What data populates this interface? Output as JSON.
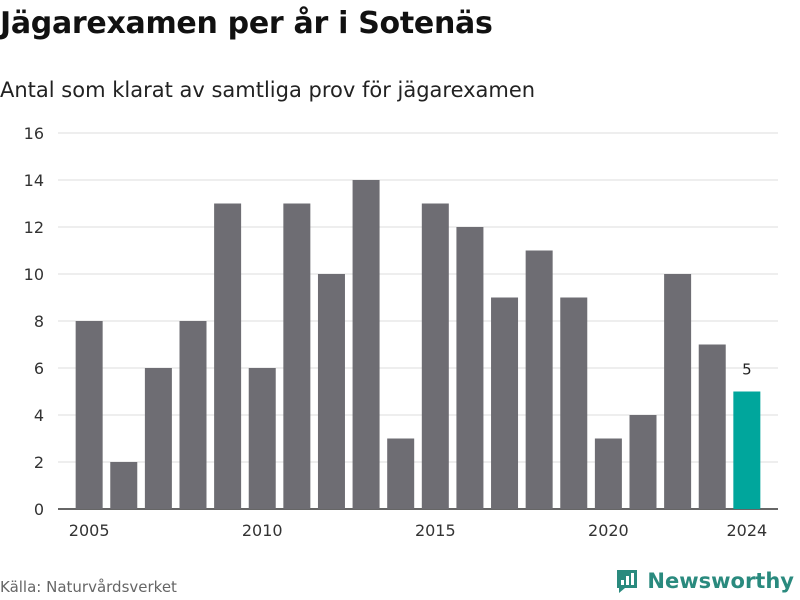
{
  "title": "Jägarexamen per år i Sotenäs",
  "subtitle": "Antal som klarat av samtliga prov för jägarexamen",
  "source": "Källa: Naturvårdsverket",
  "brand": {
    "name": "Newsworthy",
    "icon": "newsworthy-logo-icon"
  },
  "colors": {
    "bar": "#6e6d73",
    "highlight": "#00a69c",
    "grid": "#dddddd",
    "brand": "#2a8a7e"
  },
  "chart_data": {
    "type": "bar",
    "title": "Jägarexamen per år i Sotenäs",
    "subtitle": "Antal som klarat av samtliga prov för jägarexamen",
    "x": [
      2005,
      2006,
      2007,
      2008,
      2009,
      2010,
      2011,
      2012,
      2013,
      2014,
      2015,
      2016,
      2017,
      2018,
      2019,
      2020,
      2021,
      2022,
      2023,
      2024
    ],
    "values": [
      8,
      2,
      6,
      8,
      13,
      6,
      13,
      10,
      14,
      3,
      13,
      12,
      9,
      11,
      9,
      3,
      4,
      10,
      7,
      5
    ],
    "highlight_index": 19,
    "data_labels": [
      {
        "x": 2024,
        "text": "5"
      }
    ],
    "x_ticks": [
      2005,
      2010,
      2015,
      2020,
      2024
    ],
    "y_ticks": [
      0,
      2,
      4,
      6,
      8,
      10,
      12,
      14,
      16
    ],
    "ylim": [
      0,
      16
    ],
    "xlabel": "",
    "ylabel": "",
    "grid": true,
    "legend": "none"
  }
}
